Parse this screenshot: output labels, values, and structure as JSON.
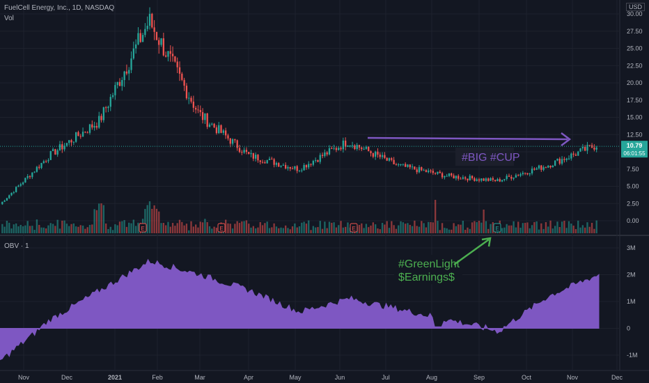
{
  "header": {
    "symbol_title": "FuelCell Energy, Inc., 1D, NASDAQ",
    "vol_label": "Vol",
    "currency": "USD",
    "obv_label": "OBV · 1"
  },
  "price_badge": {
    "price": "10.79",
    "countdown": "06:01:55",
    "color": "#26a69a"
  },
  "annotations": {
    "big_cup": "#BIG #CUP",
    "green_light_line1": "#GreenLight",
    "green_light_line2": "$Earnings$"
  },
  "earnings_marker": "E",
  "colors": {
    "up": "#26a69a",
    "down": "#ef5350",
    "obv": "#7e57c2",
    "grid": "#1e222d",
    "background": "#131722"
  },
  "chart_data": [
    {
      "type": "candlestick",
      "title": "FuelCell Energy, Inc., 1D, NASDAQ",
      "y_axis_ticks": [
        "30.00",
        "27.50",
        "25.00",
        "22.50",
        "20.00",
        "17.50",
        "15.00",
        "12.50",
        "10.00",
        "7.50",
        "5.00",
        "2.50",
        "0.00"
      ],
      "ylim": [
        -1,
        30
      ],
      "x_axis_ticks": [
        "Nov",
        "Dec",
        "2021",
        "Feb",
        "Mar",
        "Apr",
        "May",
        "Jun",
        "Jul",
        "Aug",
        "Sep",
        "Oct",
        "Nov",
        "Dec"
      ],
      "last_price": 10.79,
      "price_path_by_month": [
        {
          "month": "Nov 2020",
          "close": 2.4
        },
        {
          "month": "Dec 2020",
          "close": 9.5
        },
        {
          "month": "Jan 2021",
          "close": 14.5
        },
        {
          "month": "Feb 2021",
          "close": 29.0
        },
        {
          "month": "Mar 2021",
          "close": 15.5
        },
        {
          "month": "Apr 2021",
          "close": 9.5
        },
        {
          "month": "May 2021",
          "close": 7.5
        },
        {
          "month": "Jun 2021",
          "close": 11.5
        },
        {
          "month": "Jul 2021",
          "close": 8.0
        },
        {
          "month": "Aug 2021",
          "close": 6.5
        },
        {
          "month": "Sep 2021",
          "close": 5.8
        },
        {
          "month": "Oct 2021",
          "close": 8.0
        },
        {
          "month": "Nov 2021",
          "close": 11.0
        }
      ]
    },
    {
      "type": "bar",
      "title": "Vol",
      "series": [
        {
          "values_relative": "volume bars, green up / red down; spikes near early Dec 2020, Feb 2021 and mid Sep 2021"
        }
      ]
    },
    {
      "type": "area",
      "title": "OBV · 1",
      "y_axis_ticks": [
        "3M",
        "2M",
        "1M",
        "0",
        "-1M"
      ],
      "ylim": [
        -1.4,
        3.3
      ],
      "values_by_month": [
        {
          "month": "Nov 2020",
          "value": -1.2
        },
        {
          "month": "Dec 2020",
          "value": 0.3
        },
        {
          "month": "Jan 2021",
          "value": 1.4
        },
        {
          "month": "Feb 2021",
          "value": 2.5
        },
        {
          "month": "Mar 2021",
          "value": 2.0
        },
        {
          "month": "Apr 2021",
          "value": 1.4
        },
        {
          "month": "May 2021",
          "value": 0.6
        },
        {
          "month": "Jun 2021",
          "value": 1.1
        },
        {
          "month": "Jul 2021",
          "value": 0.7
        },
        {
          "month": "Aug 2021",
          "value": 0.3
        },
        {
          "month": "Sep 2021",
          "value": -0.1
        },
        {
          "month": "Oct 2021",
          "value": 1.2
        },
        {
          "month": "Nov 2021",
          "value": 2.0
        }
      ]
    }
  ]
}
